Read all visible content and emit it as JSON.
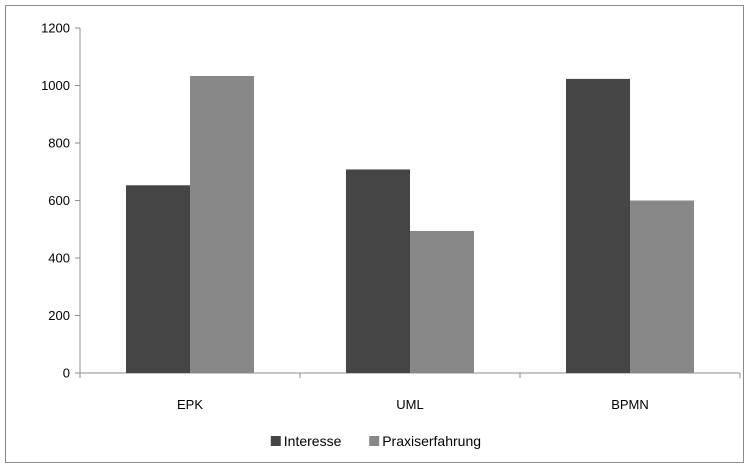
{
  "chart_data": {
    "type": "bar",
    "categories": [
      "EPK",
      "UML",
      "BPMN"
    ],
    "series": [
      {
        "name": "Interesse",
        "values": [
          653,
          708,
          1023
        ],
        "color": "#454545"
      },
      {
        "name": "Praxiserfahrung",
        "values": [
          1033,
          494,
          600
        ],
        "color": "#888888"
      }
    ],
    "ylim": [
      0,
      1200
    ],
    "yticks": [
      0,
      200,
      400,
      600,
      800,
      1000,
      1200
    ],
    "grid": false,
    "legend": "bottom",
    "title": "",
    "xlabel": "",
    "ylabel": ""
  }
}
